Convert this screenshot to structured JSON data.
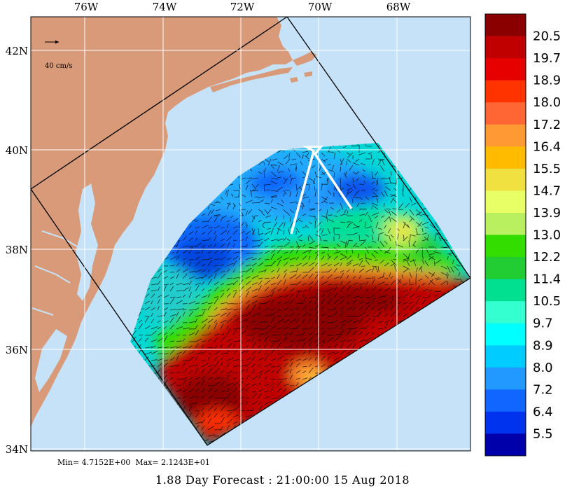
{
  "caption": "1.88 Day Forecast : 21:00:00  15 Aug 2018",
  "min_label": "Min=",
  "min_value": "4.7152E+00",
  "max_label": "Max=",
  "max_value": "2.1243E+01",
  "scale_label": "40 cm/s",
  "lon_ticks": [
    "76W",
    "74W",
    "72W",
    "70W",
    "68W"
  ],
  "lat_ticks": [
    "42N",
    "40N",
    "38N",
    "36N",
    "34N"
  ],
  "colorbar": {
    "labels": [
      "20.5",
      "19.7",
      "18.9",
      "18.0",
      "17.2",
      "16.4",
      "15.5",
      "14.7",
      "13.9",
      "13.0",
      "12.2",
      "11.4",
      "10.5",
      "9.7",
      "8.9",
      "8.0",
      "7.2",
      "6.4",
      "5.5"
    ],
    "colors": [
      "#8a0000",
      "#c00000",
      "#e60000",
      "#ff3300",
      "#ff6633",
      "#ff9933",
      "#ffbb00",
      "#f0e040",
      "#e8ff66",
      "#b8f060",
      "#33dd00",
      "#22cc33",
      "#00e090",
      "#33ffd0",
      "#00ffff",
      "#00ccff",
      "#2299ff",
      "#1166ff",
      "#0033ee",
      "#0000aa"
    ]
  },
  "colors": {
    "ocean": "#c6e2f8",
    "land": "#d89a78",
    "grid": "#ffffff"
  }
}
